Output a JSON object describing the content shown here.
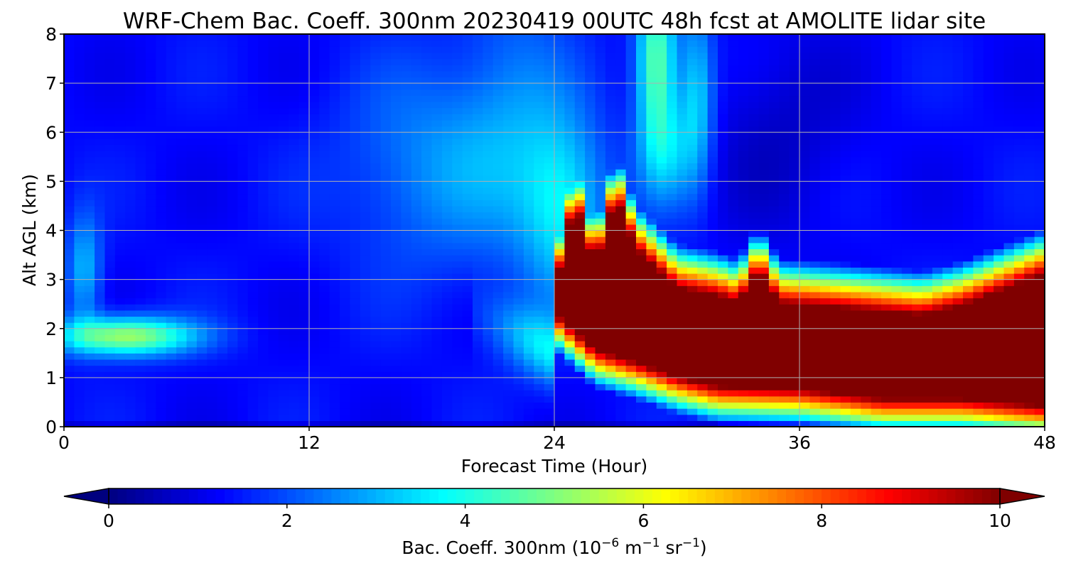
{
  "chart_data": {
    "type": "heatmap",
    "title": "WRF-Chem Bac. Coeff. 300nm  20230419 00UTC 48h fcst at AMOLITE lidar site",
    "xlabel": "Forecast Time (Hour)",
    "ylabel": "Alt AGL (km)",
    "xlim": [
      0,
      48
    ],
    "ylim": [
      0,
      8
    ],
    "xticks": [
      "0",
      "12",
      "24",
      "36",
      "48"
    ],
    "yticks": [
      "0",
      "1",
      "2",
      "3",
      "4",
      "5",
      "6",
      "7",
      "8"
    ],
    "grid": true,
    "colormap": "jet",
    "colorbar": {
      "label_main": "Bac. Coeff. 300nm  (10",
      "exp1": "−6",
      "label_mid": " m",
      "exp2": "−1",
      "label_mid2": " sr",
      "exp3": "−1",
      "label_end": ")",
      "range": [
        0,
        10
      ],
      "ticks": [
        "0",
        "2",
        "4",
        "6",
        "8",
        "10"
      ],
      "extend": "both",
      "orientation": "horizontal"
    },
    "x_hours": [
      0,
      1,
      3,
      5,
      7,
      9,
      12,
      15,
      18,
      21,
      23,
      24,
      25,
      26,
      27,
      28,
      29,
      30,
      31,
      32,
      33,
      34,
      36,
      38,
      40,
      42,
      44,
      46,
      48
    ],
    "y_km": [
      0,
      0.25,
      0.5,
      0.75,
      1,
      1.25,
      1.5,
      1.75,
      2,
      2.25,
      2.5,
      2.75,
      3,
      3.25,
      3.5,
      4,
      4.5,
      5,
      5.5,
      6,
      6.5,
      7,
      7.5,
      8
    ],
    "features": [
      {
        "name": "early-lowlevel-plume",
        "x_range": [
          0.5,
          8
        ],
        "y_range": [
          1.3,
          2.4
        ],
        "peak_value": 5.5
      },
      {
        "name": "upper-moderate-plume",
        "x_range": [
          13,
          24
        ],
        "y_range": [
          3,
          8
        ],
        "peak_value": 2.5
      },
      {
        "name": "descending-dense-layer",
        "x_range": [
          24,
          48
        ],
        "y_range": [
          0.6,
          3.4
        ],
        "peak_value": 10
      },
      {
        "name": "upper-spikes-near-27h",
        "x_range": [
          24,
          28
        ],
        "y_range": [
          3,
          5.2
        ],
        "peak_value": 9.5
      },
      {
        "name": "top-streaks-30h",
        "x_range": [
          28,
          32
        ],
        "y_range": [
          5,
          8
        ],
        "peak_value": 4
      }
    ]
  }
}
